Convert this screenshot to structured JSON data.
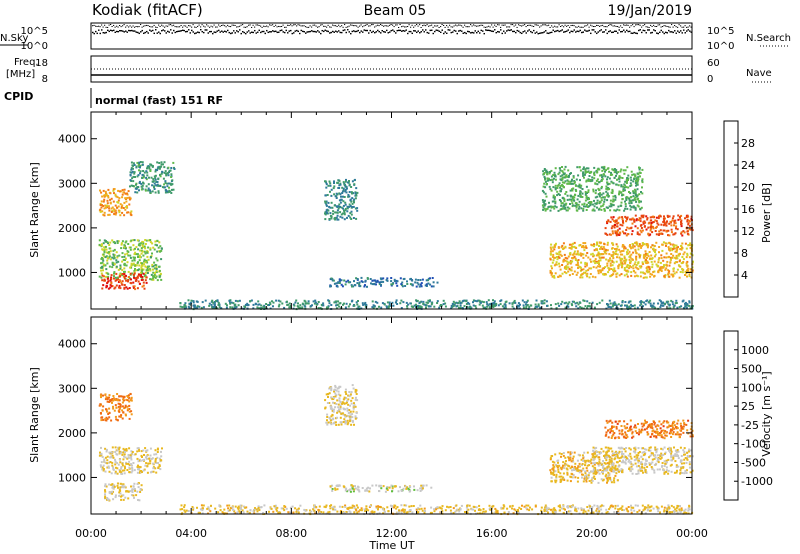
{
  "header": {
    "station": "Kodiak (fitACF)",
    "beam": "Beam 05",
    "date": "19/Jan/2019"
  },
  "noise_panel": {
    "left_label": "N.Sky",
    "left_ticks": [
      "10^5",
      "10^0"
    ],
    "right_label": "N.Search",
    "right_ticks": [
      "10^5",
      "10^0"
    ]
  },
  "freq_panel": {
    "label_line1": "Freq.",
    "label_line2": "[MHz]",
    "left_ticks": [
      "18",
      "8"
    ],
    "right_label": "Nave",
    "right_ticks": [
      "60",
      "0"
    ]
  },
  "cpid": {
    "label": "CPID",
    "program": "normal (fast) 151 RF"
  },
  "time_axis": {
    "label": "Time UT",
    "ticks": [
      "00:00",
      "04:00",
      "08:00",
      "12:00",
      "16:00",
      "20:00",
      "00:00"
    ]
  },
  "range_axis": {
    "label": "Slant Range [km]",
    "ticks": [
      "1000",
      "2000",
      "3000",
      "4000"
    ]
  },
  "colorbars": {
    "power": {
      "title": "Power [dB]",
      "labels": [
        "4",
        "8",
        "12",
        "16",
        "20",
        "24",
        "28"
      ],
      "colors": [
        "#1a1aff",
        "#1f4fb4",
        "#2f7a9a",
        "#3f9a6a",
        "#5fb84a",
        "#cfd62a",
        "#f2a81e",
        "#f27a14",
        "#e8440f",
        "#e00e0e"
      ]
    },
    "velocity": {
      "title": "Velocity [m s⁻¹]",
      "labels": [
        "1000",
        "500",
        "100",
        "25",
        "-25",
        "-100",
        "-500",
        "-1000"
      ],
      "colors": [
        "#2a4fc8",
        "#2f72a8",
        "#3c8e6a",
        "#5fbf3c",
        "#c8c8c8",
        "#e8b820",
        "#f29a1a",
        "#f06a12",
        "#e83a0f",
        "#e00e0e"
      ]
    }
  },
  "chart_data": [
    {
      "type": "heatmap",
      "title": "Power [dB]",
      "xlabel": "Time UT",
      "ylabel": "Slant Range [km]",
      "xlim": [
        "00:00",
        "24:00"
      ],
      "ylim": [
        180,
        4600
      ],
      "clim": [
        0,
        30
      ],
      "regions": [
        {
          "t": [
            0.3,
            2.8
          ],
          "r": [
            850,
            1750
          ],
          "v": 14
        },
        {
          "t": [
            0.4,
            2.2
          ],
          "r": [
            650,
            1000
          ],
          "v": 26
        },
        {
          "t": [
            0.3,
            1.6
          ],
          "r": [
            2300,
            2900
          ],
          "v": 20
        },
        {
          "t": [
            1.5,
            3.3
          ],
          "r": [
            2800,
            3500
          ],
          "v": 10
        },
        {
          "t": [
            9.3,
            10.6
          ],
          "r": [
            2200,
            3100
          ],
          "v": 9
        },
        {
          "t": [
            9.5,
            13.8
          ],
          "r": [
            700,
            900
          ],
          "v": 7
        },
        {
          "t": [
            3.5,
            24
          ],
          "r": [
            200,
            400
          ],
          "v": 9
        },
        {
          "t": [
            18.3,
            24
          ],
          "r": [
            900,
            1700
          ],
          "v": 19
        },
        {
          "t": [
            20.5,
            24
          ],
          "r": [
            1850,
            2300
          ],
          "v": 25
        },
        {
          "t": [
            18.0,
            22.0
          ],
          "r": [
            2400,
            3400
          ],
          "v": 12
        }
      ]
    },
    {
      "type": "heatmap",
      "title": "Velocity [m s⁻¹]",
      "xlabel": "Time UT",
      "ylabel": "Slant Range [km]",
      "xlim": [
        "00:00",
        "24:00"
      ],
      "ylim": [
        180,
        4600
      ],
      "clim": [
        -1000,
        1000
      ],
      "regions": [
        {
          "t": [
            0.3,
            2.8
          ],
          "r": [
            1100,
            1700
          ],
          "v": 0
        },
        {
          "t": [
            0.3,
            1.6
          ],
          "r": [
            2300,
            2900
          ],
          "v": -400
        },
        {
          "t": [
            0.5,
            2.0
          ],
          "r": [
            500,
            900
          ],
          "v": 0
        },
        {
          "t": [
            9.3,
            10.6
          ],
          "r": [
            2200,
            3100
          ],
          "v": 0
        },
        {
          "t": [
            9.5,
            13.8
          ],
          "r": [
            700,
            850
          ],
          "v": 80
        },
        {
          "t": [
            3.5,
            24
          ],
          "r": [
            200,
            400
          ],
          "v": -60
        },
        {
          "t": [
            18.3,
            21.0
          ],
          "r": [
            900,
            1600
          ],
          "v": -90
        },
        {
          "t": [
            20.5,
            24
          ],
          "r": [
            1900,
            2300
          ],
          "v": -450
        },
        {
          "t": [
            20.0,
            24
          ],
          "r": [
            1100,
            1700
          ],
          "v": 0
        }
      ]
    }
  ]
}
